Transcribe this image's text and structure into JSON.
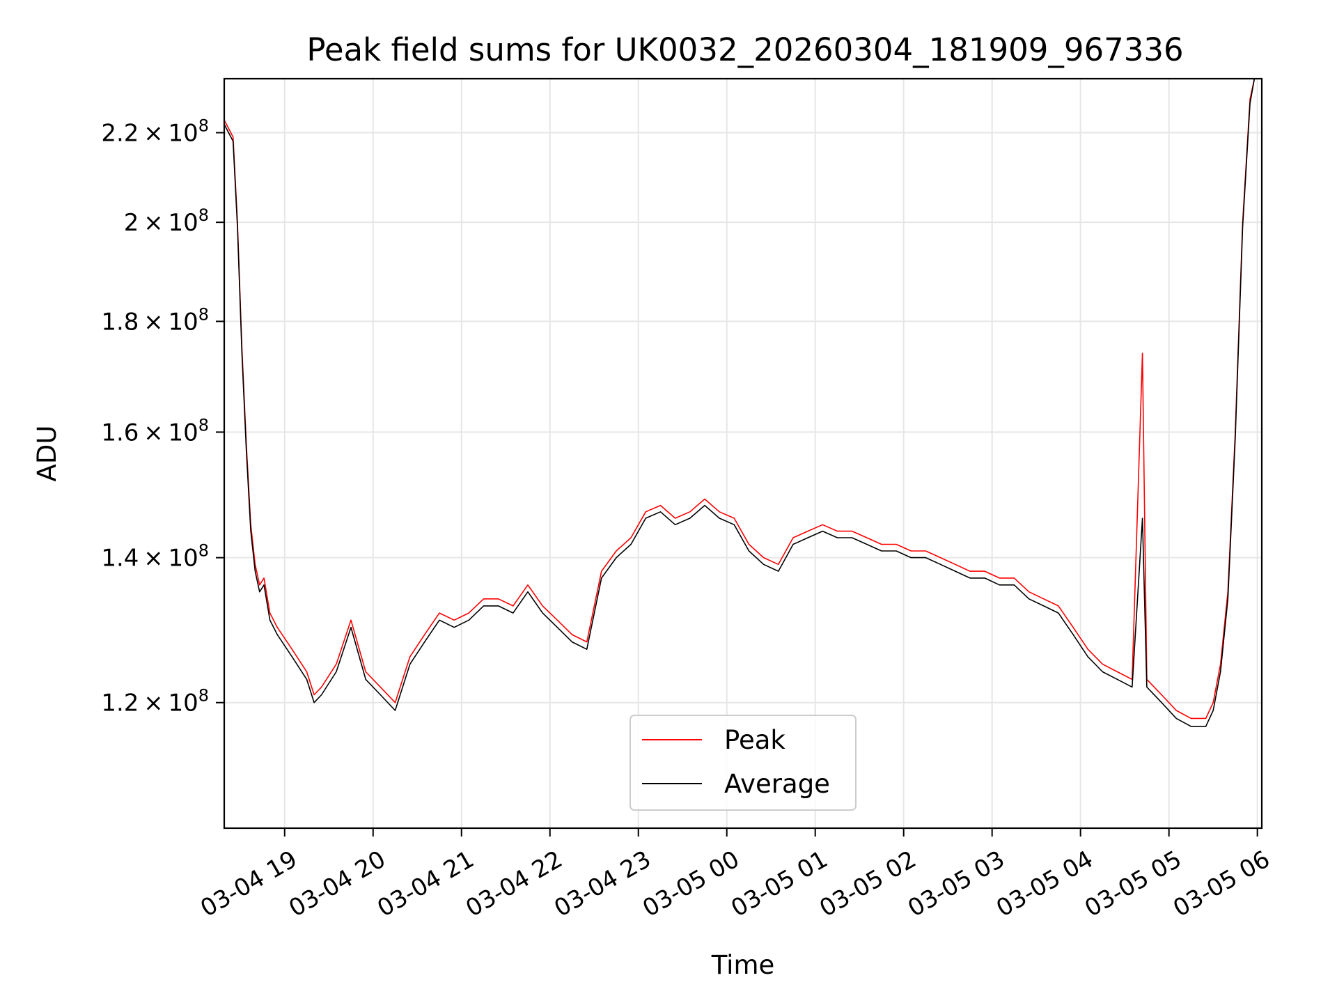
{
  "chart_data": {
    "type": "line",
    "title": "Peak field sums for UK0032_20260304_181909_967336",
    "xlabel": "Time",
    "ylabel": "ADU",
    "x_axis_type": "time",
    "y_scale": "log",
    "xlim": [
      "2026-03-04 18:19",
      "2026-03-05 06:03"
    ],
    "ylim": [
      105000000,
      233000000
    ],
    "grid": true,
    "legend_position": "lower center",
    "x_ticks": [
      {
        "t": "2026-03-04 19:00",
        "label": "03-04 19"
      },
      {
        "t": "2026-03-04 20:00",
        "label": "03-04 20"
      },
      {
        "t": "2026-03-04 21:00",
        "label": "03-04 21"
      },
      {
        "t": "2026-03-04 22:00",
        "label": "03-04 22"
      },
      {
        "t": "2026-03-04 23:00",
        "label": "03-04 23"
      },
      {
        "t": "2026-03-05 00:00",
        "label": "03-05 00"
      },
      {
        "t": "2026-03-05 01:00",
        "label": "03-05 01"
      },
      {
        "t": "2026-03-05 02:00",
        "label": "03-05 02"
      },
      {
        "t": "2026-03-05 03:00",
        "label": "03-05 03"
      },
      {
        "t": "2026-03-05 04:00",
        "label": "03-05 04"
      },
      {
        "t": "2026-03-05 05:00",
        "label": "03-05 05"
      },
      {
        "t": "2026-03-05 06:00",
        "label": "03-05 06"
      }
    ],
    "y_ticks": [
      {
        "value": 120000000,
        "mantissa": "1.2",
        "exponent": "8"
      },
      {
        "value": 140000000,
        "mantissa": "1.4",
        "exponent": "8"
      },
      {
        "value": 160000000,
        "mantissa": "1.6",
        "exponent": "8"
      },
      {
        "value": 180000000,
        "mantissa": "1.8",
        "exponent": "8"
      },
      {
        "value": 200000000,
        "mantissa": "2",
        "exponent": "8"
      },
      {
        "value": 220000000,
        "mantissa": "2.2",
        "exponent": "8"
      }
    ],
    "series": [
      {
        "name": "Peak",
        "color": "#ff0000",
        "points": [
          [
            "2026-03-04 18:19",
            223000000
          ],
          [
            "2026-03-04 18:22",
            221000000
          ],
          [
            "2026-03-04 18:25",
            219000000
          ],
          [
            "2026-03-04 18:28",
            200000000
          ],
          [
            "2026-03-04 18:31",
            175000000
          ],
          [
            "2026-03-04 18:34",
            158000000
          ],
          [
            "2026-03-04 18:37",
            145000000
          ],
          [
            "2026-03-04 18:40",
            139000000
          ],
          [
            "2026-03-04 18:43",
            136000000
          ],
          [
            "2026-03-04 18:46",
            137000000
          ],
          [
            "2026-03-04 18:50",
            132000000
          ],
          [
            "2026-03-04 18:55",
            130000000
          ],
          [
            "2026-03-04 19:05",
            127000000
          ],
          [
            "2026-03-04 19:15",
            124000000
          ],
          [
            "2026-03-04 19:20",
            121000000
          ],
          [
            "2026-03-04 19:25",
            122000000
          ],
          [
            "2026-03-04 19:35",
            125000000
          ],
          [
            "2026-03-04 19:45",
            131000000
          ],
          [
            "2026-03-04 19:55",
            124000000
          ],
          [
            "2026-03-04 20:05",
            122000000
          ],
          [
            "2026-03-04 20:15",
            120000000
          ],
          [
            "2026-03-04 20:25",
            126000000
          ],
          [
            "2026-03-04 20:35",
            129000000
          ],
          [
            "2026-03-04 20:45",
            132000000
          ],
          [
            "2026-03-04 20:55",
            131000000
          ],
          [
            "2026-03-04 21:05",
            132000000
          ],
          [
            "2026-03-04 21:15",
            134000000
          ],
          [
            "2026-03-04 21:25",
            134000000
          ],
          [
            "2026-03-04 21:35",
            133000000
          ],
          [
            "2026-03-04 21:45",
            136000000
          ],
          [
            "2026-03-04 21:55",
            133000000
          ],
          [
            "2026-03-04 22:05",
            131000000
          ],
          [
            "2026-03-04 22:15",
            129000000
          ],
          [
            "2026-03-04 22:25",
            128000000
          ],
          [
            "2026-03-04 22:35",
            138000000
          ],
          [
            "2026-03-04 22:45",
            141000000
          ],
          [
            "2026-03-04 22:55",
            143000000
          ],
          [
            "2026-03-04 23:05",
            147000000
          ],
          [
            "2026-03-04 23:15",
            148000000
          ],
          [
            "2026-03-04 23:25",
            146000000
          ],
          [
            "2026-03-04 23:35",
            147000000
          ],
          [
            "2026-03-04 23:45",
            149000000
          ],
          [
            "2026-03-04 23:55",
            147000000
          ],
          [
            "2026-03-05 00:05",
            146000000
          ],
          [
            "2026-03-05 00:15",
            142000000
          ],
          [
            "2026-03-05 00:25",
            140000000
          ],
          [
            "2026-03-05 00:35",
            139000000
          ],
          [
            "2026-03-05 00:45",
            143000000
          ],
          [
            "2026-03-05 00:55",
            144000000
          ],
          [
            "2026-03-05 01:05",
            145000000
          ],
          [
            "2026-03-05 01:15",
            144000000
          ],
          [
            "2026-03-05 01:25",
            144000000
          ],
          [
            "2026-03-05 01:35",
            143000000
          ],
          [
            "2026-03-05 01:45",
            142000000
          ],
          [
            "2026-03-05 01:55",
            142000000
          ],
          [
            "2026-03-05 02:05",
            141000000
          ],
          [
            "2026-03-05 02:15",
            141000000
          ],
          [
            "2026-03-05 02:25",
            140000000
          ],
          [
            "2026-03-05 02:35",
            139000000
          ],
          [
            "2026-03-05 02:45",
            138000000
          ],
          [
            "2026-03-05 02:55",
            138000000
          ],
          [
            "2026-03-05 03:05",
            137000000
          ],
          [
            "2026-03-05 03:15",
            137000000
          ],
          [
            "2026-03-05 03:25",
            135000000
          ],
          [
            "2026-03-05 03:35",
            134000000
          ],
          [
            "2026-03-05 03:45",
            133000000
          ],
          [
            "2026-03-05 03:55",
            130000000
          ],
          [
            "2026-03-05 04:05",
            127000000
          ],
          [
            "2026-03-05 04:15",
            125000000
          ],
          [
            "2026-03-05 04:25",
            124000000
          ],
          [
            "2026-03-05 04:35",
            123000000
          ],
          [
            "2026-03-05 04:42",
            174000000
          ],
          [
            "2026-03-05 04:45",
            123000000
          ],
          [
            "2026-03-05 04:55",
            121000000
          ],
          [
            "2026-03-05 05:05",
            119000000
          ],
          [
            "2026-03-05 05:15",
            118000000
          ],
          [
            "2026-03-05 05:25",
            118000000
          ],
          [
            "2026-03-05 05:30",
            120000000
          ],
          [
            "2026-03-05 05:35",
            125000000
          ],
          [
            "2026-03-05 05:40",
            135000000
          ],
          [
            "2026-03-05 05:45",
            160000000
          ],
          [
            "2026-03-05 05:50",
            200000000
          ],
          [
            "2026-03-05 05:55",
            228000000
          ],
          [
            "2026-03-05 05:58",
            233000000
          ]
        ]
      },
      {
        "name": "Average",
        "color": "#000000",
        "points": [
          [
            "2026-03-04 18:19",
            222000000
          ],
          [
            "2026-03-04 18:22",
            220000000
          ],
          [
            "2026-03-04 18:25",
            218000000
          ],
          [
            "2026-03-04 18:28",
            199000000
          ],
          [
            "2026-03-04 18:31",
            174000000
          ],
          [
            "2026-03-04 18:34",
            157000000
          ],
          [
            "2026-03-04 18:37",
            144000000
          ],
          [
            "2026-03-04 18:40",
            138000000
          ],
          [
            "2026-03-04 18:43",
            135000000
          ],
          [
            "2026-03-04 18:46",
            136000000
          ],
          [
            "2026-03-04 18:50",
            131000000
          ],
          [
            "2026-03-04 18:55",
            129000000
          ],
          [
            "2026-03-04 19:05",
            126000000
          ],
          [
            "2026-03-04 19:15",
            123000000
          ],
          [
            "2026-03-04 19:20",
            120000000
          ],
          [
            "2026-03-04 19:25",
            121000000
          ],
          [
            "2026-03-04 19:35",
            124000000
          ],
          [
            "2026-03-04 19:45",
            130000000
          ],
          [
            "2026-03-04 19:55",
            123000000
          ],
          [
            "2026-03-04 20:05",
            121000000
          ],
          [
            "2026-03-04 20:15",
            119000000
          ],
          [
            "2026-03-04 20:25",
            125000000
          ],
          [
            "2026-03-04 20:35",
            128000000
          ],
          [
            "2026-03-04 20:45",
            131000000
          ],
          [
            "2026-03-04 20:55",
            130000000
          ],
          [
            "2026-03-04 21:05",
            131000000
          ],
          [
            "2026-03-04 21:15",
            133000000
          ],
          [
            "2026-03-04 21:25",
            133000000
          ],
          [
            "2026-03-04 21:35",
            132000000
          ],
          [
            "2026-03-04 21:45",
            135000000
          ],
          [
            "2026-03-04 21:55",
            132000000
          ],
          [
            "2026-03-04 22:05",
            130000000
          ],
          [
            "2026-03-04 22:15",
            128000000
          ],
          [
            "2026-03-04 22:25",
            127000000
          ],
          [
            "2026-03-04 22:35",
            137000000
          ],
          [
            "2026-03-04 22:45",
            140000000
          ],
          [
            "2026-03-04 22:55",
            142000000
          ],
          [
            "2026-03-04 23:05",
            146000000
          ],
          [
            "2026-03-04 23:15",
            147000000
          ],
          [
            "2026-03-04 23:25",
            145000000
          ],
          [
            "2026-03-04 23:35",
            146000000
          ],
          [
            "2026-03-04 23:45",
            148000000
          ],
          [
            "2026-03-04 23:55",
            146000000
          ],
          [
            "2026-03-05 00:05",
            145000000
          ],
          [
            "2026-03-05 00:15",
            141000000
          ],
          [
            "2026-03-05 00:25",
            139000000
          ],
          [
            "2026-03-05 00:35",
            138000000
          ],
          [
            "2026-03-05 00:45",
            142000000
          ],
          [
            "2026-03-05 00:55",
            143000000
          ],
          [
            "2026-03-05 01:05",
            144000000
          ],
          [
            "2026-03-05 01:15",
            143000000
          ],
          [
            "2026-03-05 01:25",
            143000000
          ],
          [
            "2026-03-05 01:35",
            142000000
          ],
          [
            "2026-03-05 01:45",
            141000000
          ],
          [
            "2026-03-05 01:55",
            141000000
          ],
          [
            "2026-03-05 02:05",
            140000000
          ],
          [
            "2026-03-05 02:15",
            140000000
          ],
          [
            "2026-03-05 02:25",
            139000000
          ],
          [
            "2026-03-05 02:35",
            138000000
          ],
          [
            "2026-03-05 02:45",
            137000000
          ],
          [
            "2026-03-05 02:55",
            137000000
          ],
          [
            "2026-03-05 03:05",
            136000000
          ],
          [
            "2026-03-05 03:15",
            136000000
          ],
          [
            "2026-03-05 03:25",
            134000000
          ],
          [
            "2026-03-05 03:35",
            133000000
          ],
          [
            "2026-03-05 03:45",
            132000000
          ],
          [
            "2026-03-05 03:55",
            129000000
          ],
          [
            "2026-03-05 04:05",
            126000000
          ],
          [
            "2026-03-05 04:15",
            124000000
          ],
          [
            "2026-03-05 04:25",
            123000000
          ],
          [
            "2026-03-05 04:35",
            122000000
          ],
          [
            "2026-03-05 04:42",
            146000000
          ],
          [
            "2026-03-05 04:45",
            122000000
          ],
          [
            "2026-03-05 04:55",
            120000000
          ],
          [
            "2026-03-05 05:05",
            118000000
          ],
          [
            "2026-03-05 05:15",
            117000000
          ],
          [
            "2026-03-05 05:25",
            117000000
          ],
          [
            "2026-03-05 05:30",
            119000000
          ],
          [
            "2026-03-05 05:35",
            124000000
          ],
          [
            "2026-03-05 05:40",
            134000000
          ],
          [
            "2026-03-05 05:45",
            159000000
          ],
          [
            "2026-03-05 05:50",
            199000000
          ],
          [
            "2026-03-05 05:55",
            227000000
          ],
          [
            "2026-03-05 05:58",
            233000000
          ]
        ]
      }
    ]
  }
}
